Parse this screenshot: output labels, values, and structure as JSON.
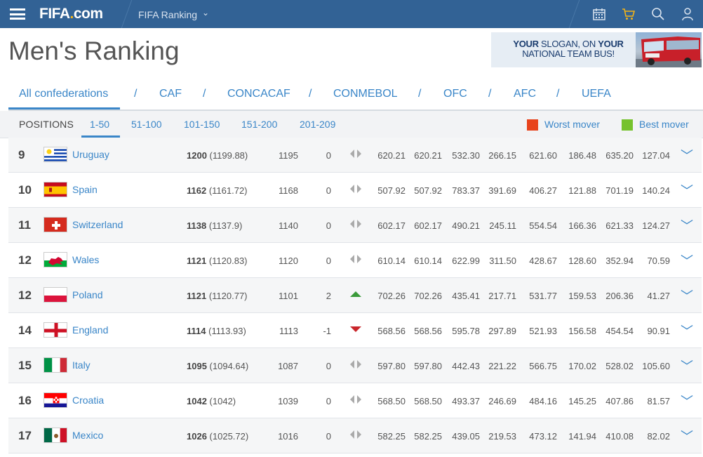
{
  "topbar": {
    "logo_main": "FIFA",
    "logo_dot": ".",
    "logo_com": "com",
    "section": "FIFA Ranking",
    "icons": [
      "menu-icon",
      "calendar-icon",
      "cart-icon",
      "search-icon",
      "user-icon"
    ],
    "background": "#326295",
    "cart_color": "#f3b316"
  },
  "header": {
    "title": "Men's Ranking",
    "ad": {
      "line1_a": "YOUR",
      "line1_b": " SLOGAN, ON ",
      "line1_c": "YOUR",
      "line2": "NATIONAL TEAM BUS!"
    }
  },
  "confederations": {
    "tabs": [
      "All confederations",
      "CAF",
      "CONCACAF",
      "CONMEBOL",
      "OFC",
      "AFC",
      "UEFA"
    ],
    "separator": "/",
    "active": "All confederations"
  },
  "positions": {
    "label": "POSITIONS",
    "tabs": [
      "1-50",
      "51-100",
      "101-150",
      "151-200",
      "201-209"
    ],
    "active": "1-50",
    "legend": {
      "worst": {
        "label": "Worst mover",
        "color": "#e8431c"
      },
      "best": {
        "label": "Best mover",
        "color": "#76c22c"
      }
    }
  },
  "rows": [
    {
      "rank": "9",
      "country": "Uruguay",
      "flag": "uruguay",
      "points": "1200",
      "points_exact": "(1199.88)",
      "prev": "1195",
      "move": "0",
      "trend": "same",
      "c1": "620.21",
      "c2": "620.21",
      "c3": "532.30",
      "c4": "266.15",
      "c5": "621.60",
      "c6": "186.48",
      "c7": "635.20",
      "c8": "127.04"
    },
    {
      "rank": "10",
      "country": "Spain",
      "flag": "spain",
      "points": "1162",
      "points_exact": "(1161.72)",
      "prev": "1168",
      "move": "0",
      "trend": "same",
      "c1": "507.92",
      "c2": "507.92",
      "c3": "783.37",
      "c4": "391.69",
      "c5": "406.27",
      "c6": "121.88",
      "c7": "701.19",
      "c8": "140.24"
    },
    {
      "rank": "11",
      "country": "Switzerland",
      "flag": "switzerland",
      "points": "1138",
      "points_exact": "(1137.9)",
      "prev": "1140",
      "move": "0",
      "trend": "same",
      "c1": "602.17",
      "c2": "602.17",
      "c3": "490.21",
      "c4": "245.11",
      "c5": "554.54",
      "c6": "166.36",
      "c7": "621.33",
      "c8": "124.27"
    },
    {
      "rank": "12",
      "country": "Wales",
      "flag": "wales",
      "points": "1121",
      "points_exact": "(1120.83)",
      "prev": "1120",
      "move": "0",
      "trend": "same",
      "c1": "610.14",
      "c2": "610.14",
      "c3": "622.99",
      "c4": "311.50",
      "c5": "428.67",
      "c6": "128.60",
      "c7": "352.94",
      "c8": "70.59"
    },
    {
      "rank": "12",
      "country": "Poland",
      "flag": "poland",
      "points": "1121",
      "points_exact": "(1120.77)",
      "prev": "1101",
      "move": "2",
      "trend": "up",
      "c1": "702.26",
      "c2": "702.26",
      "c3": "435.41",
      "c4": "217.71",
      "c5": "531.77",
      "c6": "159.53",
      "c7": "206.36",
      "c8": "41.27"
    },
    {
      "rank": "14",
      "country": "England",
      "flag": "england",
      "points": "1114",
      "points_exact": "(1113.93)",
      "prev": "1113",
      "move": "-1",
      "trend": "down",
      "c1": "568.56",
      "c2": "568.56",
      "c3": "595.78",
      "c4": "297.89",
      "c5": "521.93",
      "c6": "156.58",
      "c7": "454.54",
      "c8": "90.91"
    },
    {
      "rank": "15",
      "country": "Italy",
      "flag": "italy",
      "points": "1095",
      "points_exact": "(1094.64)",
      "prev": "1087",
      "move": "0",
      "trend": "same",
      "c1": "597.80",
      "c2": "597.80",
      "c3": "442.43",
      "c4": "221.22",
      "c5": "566.75",
      "c6": "170.02",
      "c7": "528.02",
      "c8": "105.60"
    },
    {
      "rank": "16",
      "country": "Croatia",
      "flag": "croatia",
      "points": "1042",
      "points_exact": "(1042)",
      "prev": "1039",
      "move": "0",
      "trend": "same",
      "c1": "568.50",
      "c2": "568.50",
      "c3": "493.37",
      "c4": "246.69",
      "c5": "484.16",
      "c6": "145.25",
      "c7": "407.86",
      "c8": "81.57"
    },
    {
      "rank": "17",
      "country": "Mexico",
      "flag": "mexico",
      "points": "1026",
      "points_exact": "(1025.72)",
      "prev": "1016",
      "move": "0",
      "trend": "same",
      "c1": "582.25",
      "c2": "582.25",
      "c3": "439.05",
      "c4": "219.53",
      "c5": "473.12",
      "c6": "141.94",
      "c7": "410.08",
      "c8": "82.02"
    }
  ]
}
